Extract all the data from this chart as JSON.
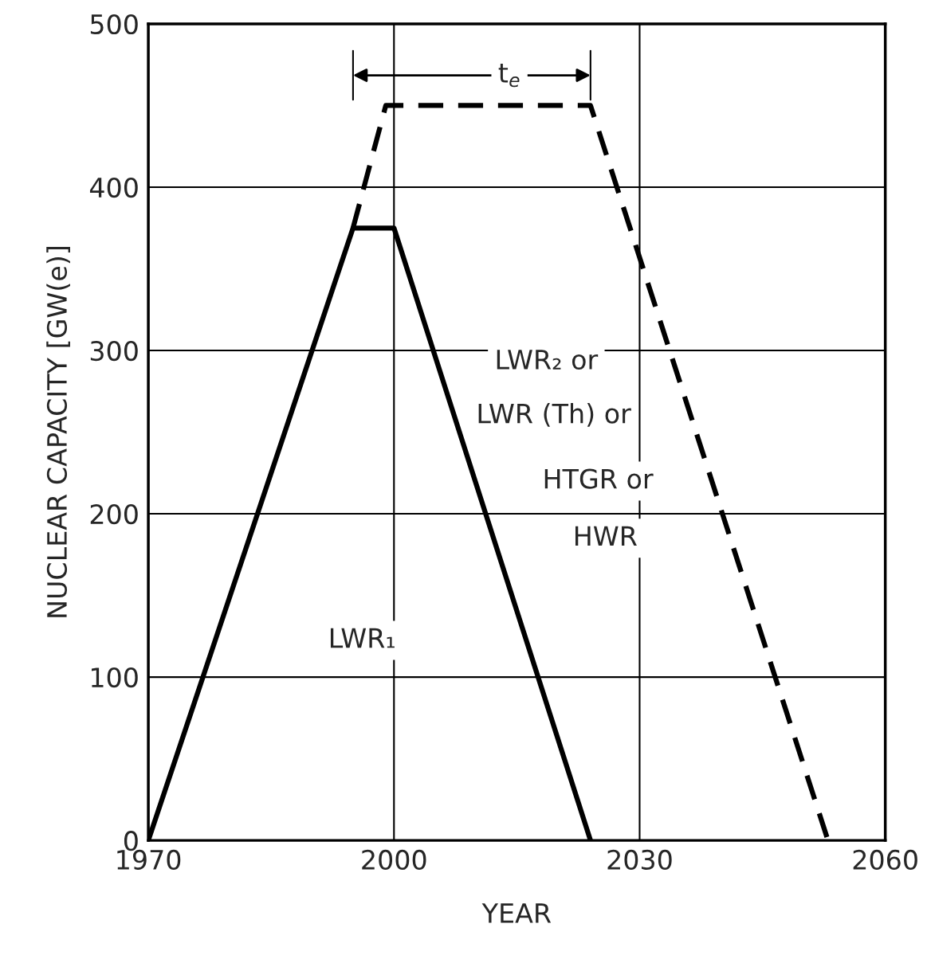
{
  "chart_data": {
    "type": "line",
    "xlabel": "YEAR",
    "ylabel": "NUCLEAR CAPACITY [GW(e)]",
    "xlim": [
      1970,
      2060
    ],
    "xticks": [
      1970,
      2000,
      2030,
      2060
    ],
    "ylim": [
      0,
      500
    ],
    "yticks": [
      0,
      100,
      200,
      300,
      400,
      500
    ],
    "grid": true,
    "series": [
      {
        "color": "#000000",
        "line_style": "solid",
        "x": [
          1970,
          1995,
          2000,
          2024
        ],
        "values": [
          0,
          375,
          375,
          0
        ]
      },
      {
        "color": "#000000",
        "line_style": "dashed",
        "x": [
          1995,
          1999,
          2024,
          2053
        ],
        "values": [
          375,
          450,
          450,
          0
        ]
      }
    ],
    "annotations": [
      "t$_{e}$",
      "LWR₂ or",
      "LWR (Th) or",
      "HTGR or",
      "HWR",
      "LWR₁"
    ]
  }
}
